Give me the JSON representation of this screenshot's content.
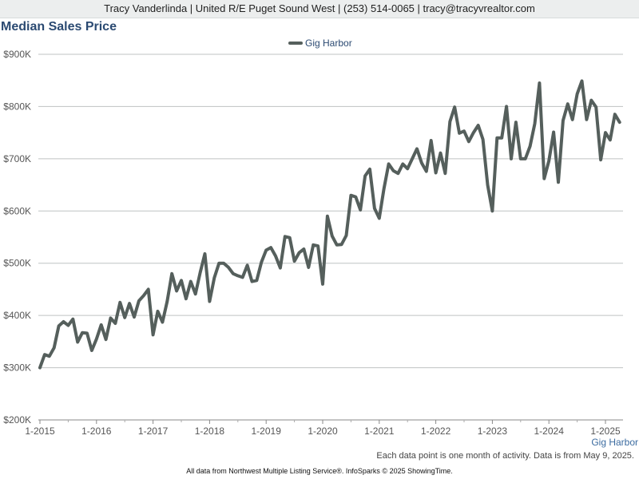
{
  "header": {
    "text": "Tracy Vanderlinda | United R/E Puget Sound West | (253) 514-0065 | tracy@tracyvrealtor.com"
  },
  "chart_data": {
    "type": "line",
    "title": "Median Sales Price",
    "xlabel": "",
    "ylabel": "",
    "x_start": "1-2015",
    "x_step": "1 month",
    "x_ticks": [
      "1-2015",
      "1-2016",
      "1-2017",
      "1-2018",
      "1-2019",
      "1-2020",
      "1-2021",
      "1-2022",
      "1-2023",
      "1-2024",
      "1-2025"
    ],
    "y_ticks": [
      "$200K",
      "$300K",
      "$400K",
      "$500K",
      "$600K",
      "$700K",
      "$800K",
      "$900K"
    ],
    "ylim": [
      200000,
      900000
    ],
    "grid": true,
    "legend_position": "top-center",
    "series": [
      {
        "name": "Gig Harbor",
        "color": "#555f5c",
        "values": [
          300000,
          325000,
          322000,
          338000,
          380000,
          388000,
          381000,
          393000,
          349000,
          367000,
          366000,
          333000,
          355000,
          382000,
          354000,
          395000,
          385000,
          425000,
          396000,
          423000,
          397000,
          428000,
          438000,
          450000,
          363000,
          408000,
          387000,
          427000,
          480000,
          447000,
          467000,
          432000,
          465000,
          441000,
          482000,
          518000,
          427000,
          472000,
          500000,
          500000,
          492000,
          480000,
          476000,
          473000,
          496000,
          465000,
          467000,
          502000,
          525000,
          530000,
          514000,
          491000,
          551000,
          549000,
          504000,
          520000,
          527000,
          492000,
          535000,
          533000,
          460000,
          590000,
          552000,
          535000,
          536000,
          553000,
          630000,
          627000,
          602000,
          667000,
          680000,
          605000,
          586000,
          643000,
          690000,
          677000,
          672000,
          690000,
          681000,
          700000,
          719000,
          692000,
          676000,
          735000,
          673000,
          711000,
          672000,
          771000,
          799000,
          749000,
          753000,
          733000,
          750000,
          764000,
          737000,
          650000,
          600000,
          740000,
          740000,
          800000,
          700000,
          770000,
          700000,
          700000,
          724000,
          767000,
          845000,
          662000,
          696000,
          751000,
          655000,
          773000,
          805000,
          775000,
          824000,
          849000,
          775000,
          812000,
          799000,
          698000,
          750000,
          736000,
          785000,
          770000
        ]
      }
    ]
  },
  "footnote": "Each data point is one month of activity. Data is from May 9, 2025.",
  "source": "All data from Northwest Multiple Listing Service®. InfoSparks © 2025 ShowingTime."
}
